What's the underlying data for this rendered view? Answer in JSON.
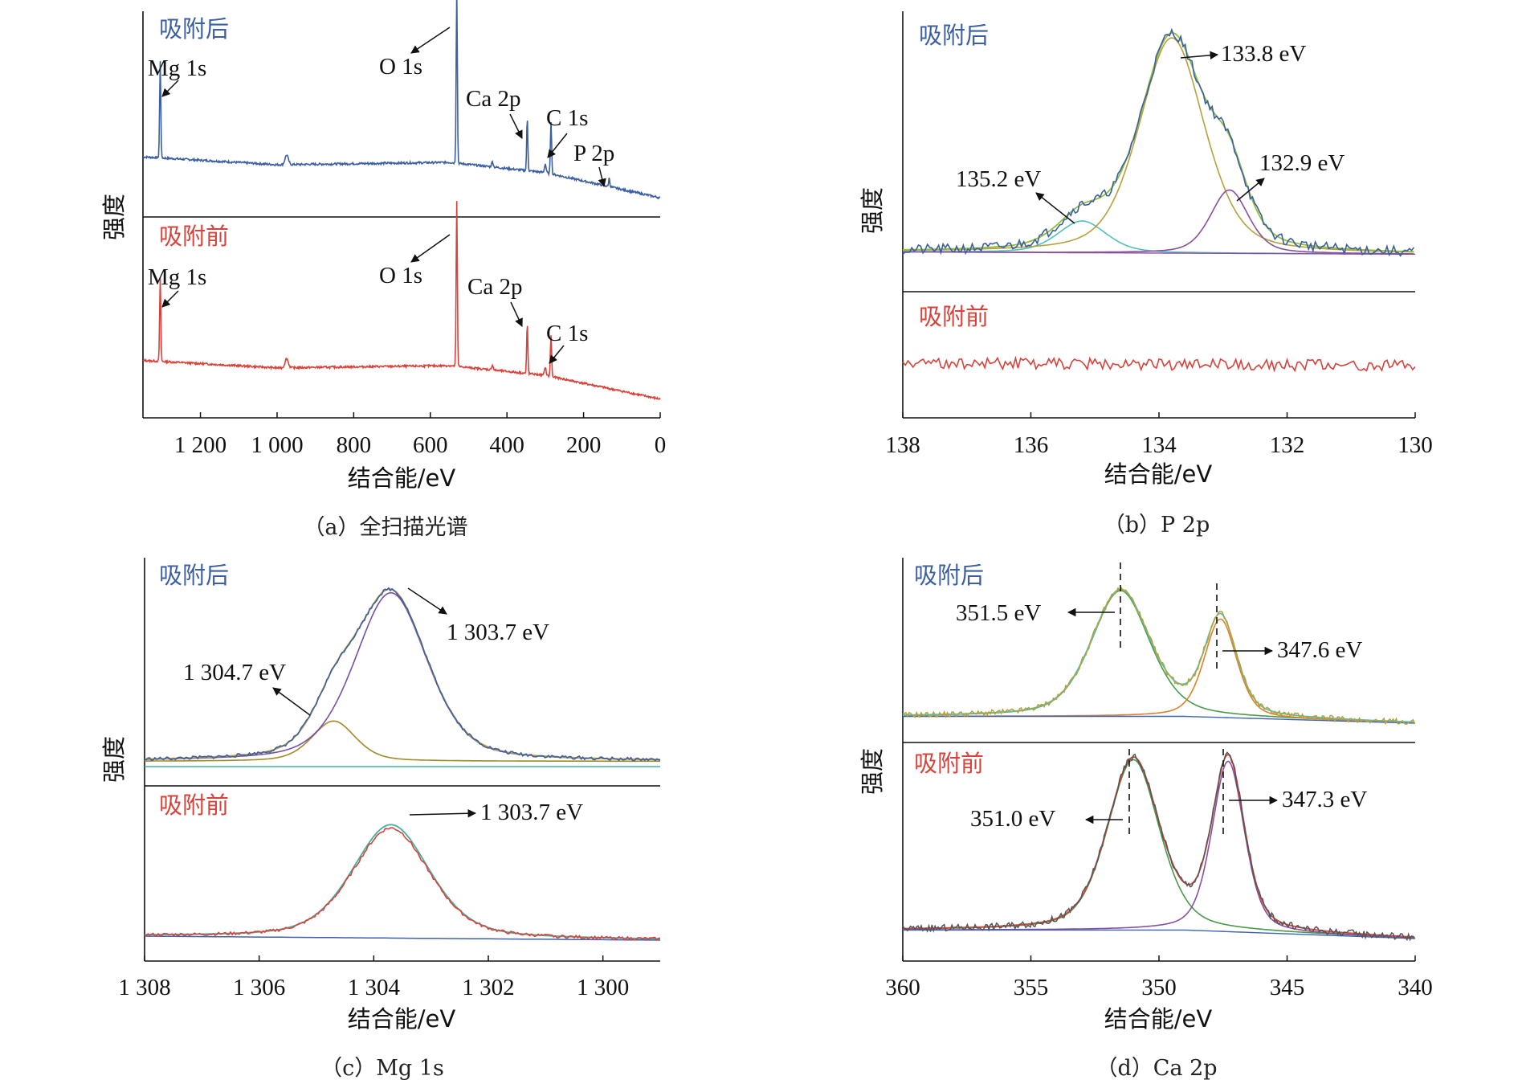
{
  "colors": {
    "after": "#3b5fa0",
    "before": "#d9423a",
    "fit_green": "#8fbf3c",
    "fit_olive": "#b8a03a",
    "fit_cyan": "#4fc0c0",
    "fit_purple": "#8a4f9e",
    "fit_orange": "#e0812a",
    "fit_teal": "#3fb0a0",
    "fit_blue": "#3f62b0",
    "fit_darkgreen": "#4a9a4a",
    "raw_gray": "#555555",
    "mg_fit_purple": "#7a4fa6",
    "mg_fit_olive": "#a08a2a"
  },
  "chart_data": [
    {
      "id": "a",
      "type": "line",
      "caption": "（a）全扫描光谱",
      "xlabel": "结合能/eV",
      "ylabel": "强度",
      "xlim": [
        1350,
        0
      ],
      "x_ticks": [
        1200,
        1000,
        800,
        600,
        400,
        200,
        0
      ],
      "x_tick_labels": [
        "1 200",
        "1 000",
        "800",
        "600",
        "400",
        "200",
        "0"
      ],
      "panels": [
        {
          "label": "吸附后",
          "series_key": "after",
          "baseline": [
            [
              1350,
              0.62
            ],
            [
              1000,
              0.52
            ],
            [
              550,
              0.55
            ],
            [
              300,
              0.42
            ],
            [
              0,
              0.1
            ]
          ],
          "peaks": [
            {
              "name": "Mg 1s",
              "x": 1305,
              "height": 0.55
            },
            {
              "name": "O 1s",
              "x": 531,
              "height": 1.0
            },
            {
              "name": "Ca 2p",
              "x": 347,
              "height": 0.3
            },
            {
              "name": "C 1s",
              "x": 285,
              "height": 0.3
            },
            {
              "name": "P 2p",
              "x": 133,
              "height": 0.05
            }
          ],
          "annotations": [
            {
              "text": "Mg 1s",
              "x": 1305
            },
            {
              "text": "O 1s",
              "x": 531
            },
            {
              "text": "Ca 2p",
              "x": 347
            },
            {
              "text": "C 1s",
              "x": 285
            },
            {
              "text": "P 2p",
              "x": 133
            }
          ]
        },
        {
          "label": "吸附前",
          "series_key": "before",
          "baseline": [
            [
              1350,
              0.62
            ],
            [
              1000,
              0.52
            ],
            [
              550,
              0.55
            ],
            [
              300,
              0.42
            ],
            [
              0,
              0.1
            ]
          ],
          "peaks": [
            {
              "name": "Mg 1s",
              "x": 1305,
              "height": 0.5
            },
            {
              "name": "O 1s",
              "x": 531,
              "height": 1.0
            },
            {
              "name": "Ca 2p",
              "x": 347,
              "height": 0.3
            },
            {
              "name": "C 1s",
              "x": 285,
              "height": 0.25
            }
          ],
          "annotations": [
            {
              "text": "Mg 1s",
              "x": 1305
            },
            {
              "text": "O 1s",
              "x": 531
            },
            {
              "text": "Ca 2p",
              "x": 347
            },
            {
              "text": "C 1s",
              "x": 285
            }
          ]
        }
      ]
    },
    {
      "id": "b",
      "type": "line",
      "caption": "（b）P 2p",
      "xlabel": "结合能/eV",
      "ylabel": "强度",
      "xlim": [
        138,
        130
      ],
      "x_ticks": [
        138,
        136,
        134,
        132,
        130
      ],
      "x_tick_labels": [
        "138",
        "136",
        "134",
        "132",
        "130"
      ],
      "panels": [
        {
          "label": "吸附后",
          "components": [
            {
              "center": 135.2,
              "width": 0.45,
              "height": 0.14
            },
            {
              "center": 133.8,
              "width": 0.6,
              "height": 0.95
            },
            {
              "center": 132.9,
              "width": 0.35,
              "height": 0.28
            }
          ],
          "annotations": [
            {
              "text": "133.8 eV",
              "x": 133.8
            },
            {
              "text": "135.2 eV",
              "x": 135.2
            },
            {
              "text": "132.9 eV",
              "x": 132.9
            }
          ]
        },
        {
          "label": "吸附前",
          "noise_level": 0.5
        }
      ]
    },
    {
      "id": "c",
      "type": "line",
      "caption": "（c）Mg 1s",
      "xlabel": "结合能/eV",
      "ylabel": "强度",
      "xlim": [
        1308,
        1299
      ],
      "x_ticks": [
        1308,
        1306,
        1304,
        1302,
        1300
      ],
      "x_tick_labels": [
        "1 308",
        "1 306",
        "1 304",
        "1 302",
        "1 300"
      ],
      "panels": [
        {
          "label": "吸附后",
          "components": [
            {
              "center": 1304.7,
              "width": 0.45,
              "height": 0.22
            },
            {
              "center": 1303.7,
              "width": 0.75,
              "height": 0.92
            }
          ],
          "annotations": [
            {
              "text": "1 303.7 eV",
              "x": 1303.7
            },
            {
              "text": "1 304.7 eV",
              "x": 1304.7
            }
          ]
        },
        {
          "label": "吸附前",
          "components": [
            {
              "center": 1303.7,
              "width": 0.8,
              "height": 0.85
            }
          ],
          "annotations": [
            {
              "text": "1 303.7 eV",
              "x": 1303.7
            }
          ]
        }
      ]
    },
    {
      "id": "d",
      "type": "line",
      "caption": "（d）Ca 2p",
      "xlabel": "结合能/eV",
      "ylabel": "强度",
      "xlim": [
        360,
        340
      ],
      "x_ticks": [
        360,
        355,
        350,
        345,
        340
      ],
      "x_tick_labels": [
        "360",
        "355",
        "350",
        "345",
        "340"
      ],
      "panels": [
        {
          "label": "吸附后",
          "components": [
            {
              "center": 351.5,
              "width": 1.35,
              "height": 0.92
            },
            {
              "center": 347.6,
              "width": 0.75,
              "height": 0.72
            }
          ],
          "annotations": [
            {
              "text": "351.5 eV",
              "x": 351.5
            },
            {
              "text": "347.6 eV",
              "x": 347.6
            }
          ]
        },
        {
          "label": "吸附前",
          "components": [
            {
              "center": 351.0,
              "width": 1.2,
              "height": 1.0
            },
            {
              "center": 347.3,
              "width": 0.75,
              "height": 1.0
            }
          ],
          "annotations": [
            {
              "text": "351.0 eV",
              "x": 351.0
            },
            {
              "text": "347.3 eV",
              "x": 347.3
            }
          ]
        }
      ]
    }
  ]
}
